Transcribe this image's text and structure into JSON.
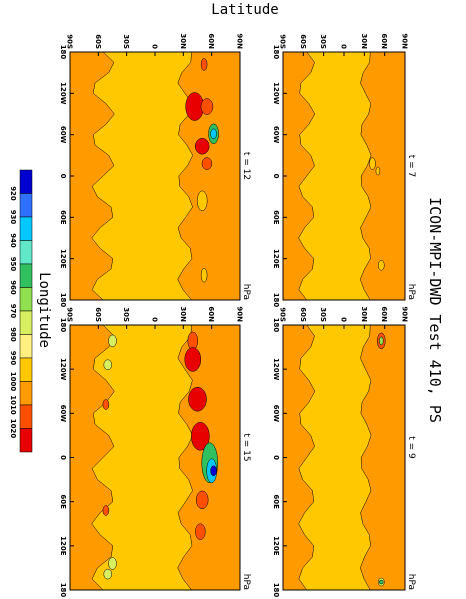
{
  "chart_data": {
    "type": "contour",
    "title": "ICON-MPI-DWD Test 410, PS",
    "y_label": "Latitude",
    "x_label": "Longitude",
    "lat_labels": [
      "90S",
      "60S",
      "30S",
      "0",
      "30N",
      "60N",
      "90N"
    ],
    "lon_labels": [
      "180",
      "120W",
      "60W",
      "0",
      "60E",
      "120E",
      "180"
    ],
    "panels": [
      {
        "label": "t = 7",
        "units": "hPa"
      },
      {
        "label": "t = 9",
        "units": "hPa"
      },
      {
        "label": "t = 12",
        "units": "hPa"
      },
      {
        "label": "t = 15",
        "units": "hPa"
      }
    ],
    "colorbar": {
      "levels": [
        920,
        930,
        940,
        950,
        960,
        970,
        980,
        990,
        1000,
        1010,
        1020
      ],
      "colors": [
        "#0000d0",
        "#3070ff",
        "#00c8ff",
        "#60e8c8",
        "#30c060",
        "#90e050",
        "#d8f060",
        "#fff080",
        "#ffc800",
        "#ff9a00",
        "#ff5000",
        "#e80000"
      ]
    }
  }
}
